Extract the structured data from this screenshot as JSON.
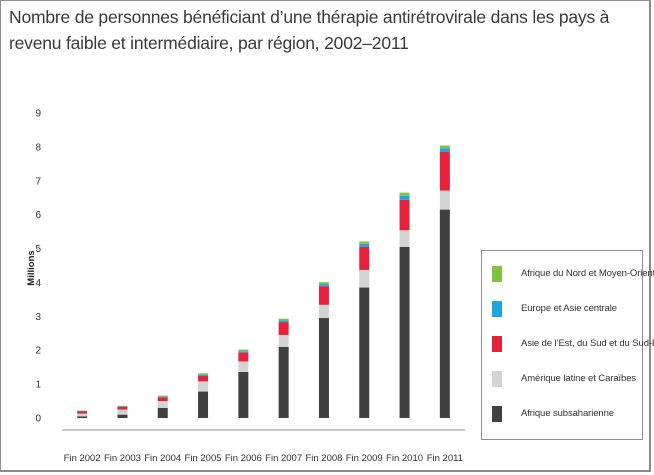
{
  "title": "Nombre de personnes bénéficiant d’une thérapie antirétrovirale dans les pays à revenu faible et intermédiaire, par région, 2002–2011",
  "chart_data": {
    "type": "bar",
    "stacked": true,
    "title": "Nombre de personnes bénéficiant d’une thérapie antirétrovirale dans les pays à revenu faible et intermédiaire, par région, 2002–2011",
    "xlabel": "",
    "ylabel": "Millions",
    "ylim": [
      0,
      9
    ],
    "yticks": [
      "0",
      "1",
      "2",
      "3",
      "4",
      "5",
      "6",
      "7",
      "8",
      "9"
    ],
    "categories": [
      "Fin 2002",
      "Fin 2003",
      "Fin 2004",
      "Fin 2005",
      "Fin 2006",
      "Fin 2007",
      "Fin 2008",
      "Fin 2009",
      "Fin 2010",
      "Fin 2011"
    ],
    "series": [
      {
        "name": "Afrique subsaharienne",
        "color": "#404040",
        "values": [
          0.05,
          0.1,
          0.3,
          0.78,
          1.36,
          2.1,
          2.95,
          3.85,
          5.05,
          6.15
        ]
      },
      {
        "name": "Amérique latine et Caraïbes",
        "color": "#d4d4d4",
        "values": [
          0.08,
          0.15,
          0.2,
          0.3,
          0.31,
          0.35,
          0.39,
          0.52,
          0.49,
          0.56
        ]
      },
      {
        "name": "Asie de l’Est, du Sud et du Sud-Est",
        "color": "#e8213a",
        "values": [
          0.07,
          0.08,
          0.11,
          0.16,
          0.26,
          0.38,
          0.55,
          0.68,
          0.9,
          1.15
        ]
      },
      {
        "name": "Europe et Asie centrale",
        "color": "#1fa6e0",
        "values": [
          0.01,
          0.01,
          0.02,
          0.03,
          0.04,
          0.05,
          0.06,
          0.09,
          0.12,
          0.1
        ]
      },
      {
        "name": "Afrique du Nord et Moyen-Orient",
        "color": "#7dc443",
        "values": [
          0.01,
          0.02,
          0.03,
          0.05,
          0.05,
          0.05,
          0.06,
          0.07,
          0.09,
          0.08
        ]
      }
    ],
    "legend_position": "right",
    "grid": false
  }
}
